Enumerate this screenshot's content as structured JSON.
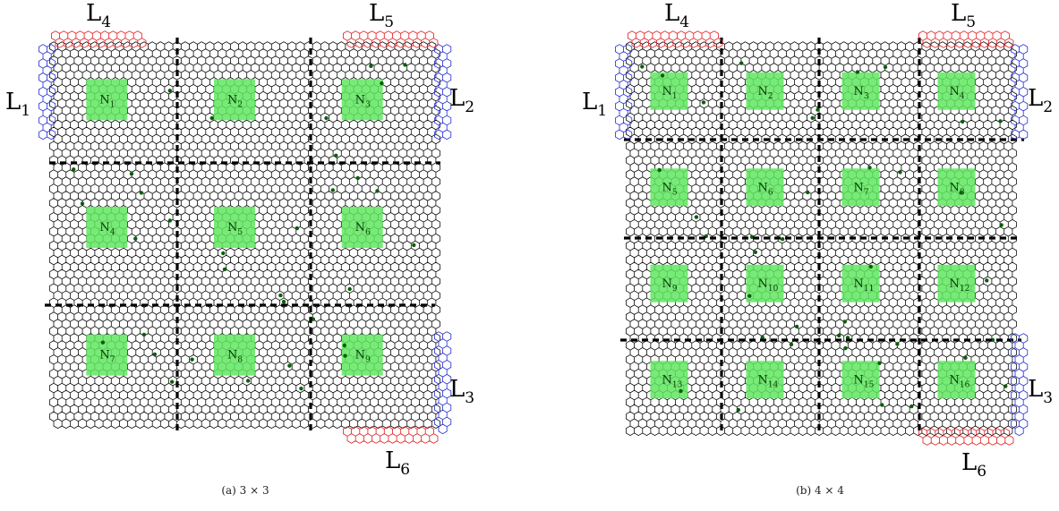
{
  "colors": {
    "cell_stroke": "#000000",
    "region": "#5fe65f",
    "sensor_dot": "#0b5d0b",
    "lead_blue": "#1f2bd6",
    "lead_red": "#e3191c",
    "divider": "#000000"
  },
  "panels": [
    {
      "caption": "(a) 3 × 3",
      "grid": 3,
      "regions": [
        {
          "base": "N",
          "sub": "1"
        },
        {
          "base": "N",
          "sub": "2"
        },
        {
          "base": "N",
          "sub": "3"
        },
        {
          "base": "N",
          "sub": "4"
        },
        {
          "base": "N",
          "sub": "5"
        },
        {
          "base": "N",
          "sub": "6"
        },
        {
          "base": "N",
          "sub": "7"
        },
        {
          "base": "N",
          "sub": "8"
        },
        {
          "base": "N",
          "sub": "9"
        }
      ],
      "leads": [
        {
          "base": "L",
          "sub": "1"
        },
        {
          "base": "L",
          "sub": "2"
        },
        {
          "base": "L",
          "sub": "3"
        },
        {
          "base": "L",
          "sub": "4"
        },
        {
          "base": "L",
          "sub": "5"
        },
        {
          "base": "L",
          "sub": "6"
        }
      ]
    },
    {
      "caption": "(b) 4 × 4",
      "grid": 4,
      "regions": [
        {
          "base": "N",
          "sub": "1"
        },
        {
          "base": "N",
          "sub": "2"
        },
        {
          "base": "N",
          "sub": "3"
        },
        {
          "base": "N",
          "sub": "4"
        },
        {
          "base": "N",
          "sub": "5"
        },
        {
          "base": "N",
          "sub": "6"
        },
        {
          "base": "N",
          "sub": "7"
        },
        {
          "base": "N",
          "sub": "8"
        },
        {
          "base": "N",
          "sub": "9"
        },
        {
          "base": "N",
          "sub": "10"
        },
        {
          "base": "N",
          "sub": "11"
        },
        {
          "base": "N",
          "sub": "12"
        },
        {
          "base": "N",
          "sub": "13"
        },
        {
          "base": "N",
          "sub": "14"
        },
        {
          "base": "N",
          "sub": "15"
        },
        {
          "base": "N",
          "sub": "16"
        }
      ],
      "leads": [
        {
          "base": "L",
          "sub": "1"
        },
        {
          "base": "L",
          "sub": "2"
        },
        {
          "base": "L",
          "sub": "3"
        },
        {
          "base": "L",
          "sub": "4"
        },
        {
          "base": "L",
          "sub": "5"
        },
        {
          "base": "L",
          "sub": "6"
        }
      ]
    }
  ]
}
